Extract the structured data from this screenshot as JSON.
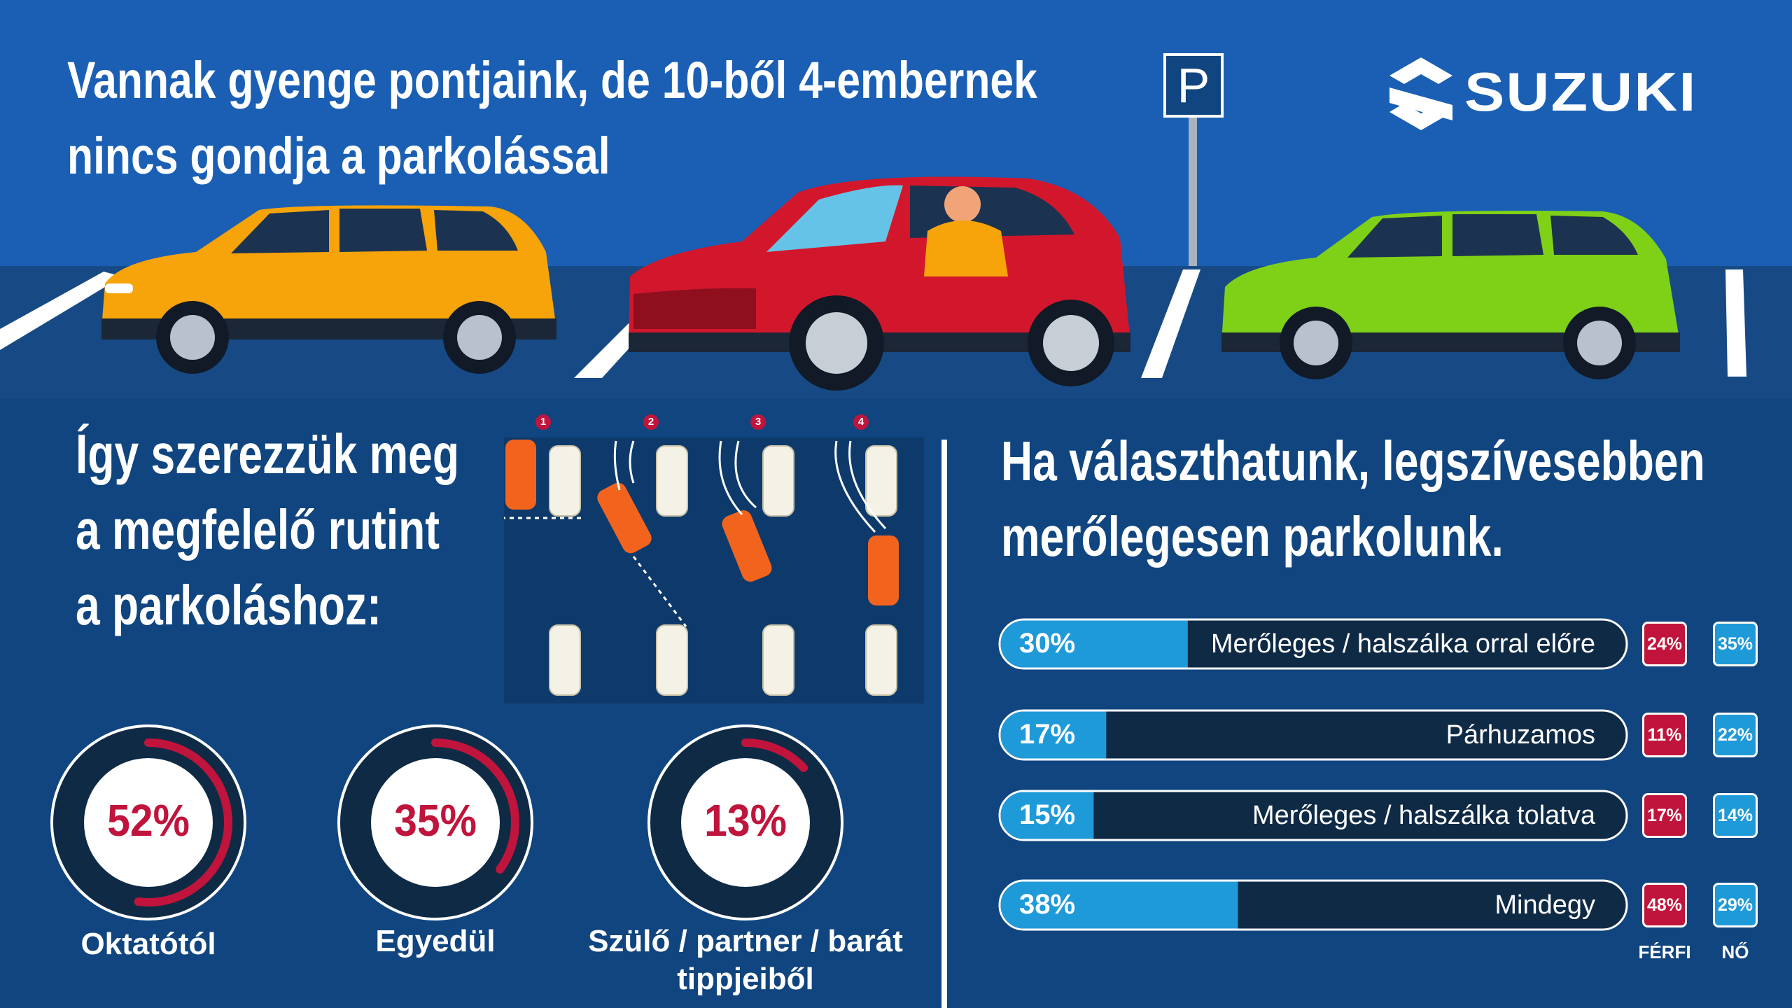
{
  "header": {
    "title_line1": "Vannak gyenge pontjaink, de 10-ből 4-embernek",
    "title_line2": "nincs gondja a parkolással",
    "logo_text": "SUZUKI",
    "parking_sign": "P"
  },
  "learning": {
    "title_line1": "Így szerezzük meg",
    "title_line2": "a megfelelő rutint",
    "title_line3": "a parkoláshoz:",
    "steps": [
      "1",
      "2",
      "3",
      "4"
    ]
  },
  "preference": {
    "title_line1": "Ha választhatunk, legszívesebben",
    "title_line2": "merőlegesen parkolunk."
  },
  "colors": {
    "background": "#10457f",
    "accent_red": "#c0143c",
    "bar_fill": "#1f9ad9",
    "bar_track": "#0f2a45",
    "car_orange": "#f7a30a",
    "car_red": "#d2172c",
    "car_green": "#7fd117"
  },
  "chart_data": [
    {
      "type": "pie",
      "categories": [
        "Oktatótól",
        "Egyedül",
        "Szülő / partner / barát tippjeiből"
      ],
      "values": [
        52,
        35,
        13
      ],
      "value_labels": [
        "52%",
        "35%",
        "13%"
      ]
    },
    {
      "type": "bar",
      "orientation": "horizontal",
      "categories": [
        "Merőleges / halszálka orral előre",
        "Párhuzamos",
        "Merőleges / halszálka tolatva",
        "Mindegy"
      ],
      "values": [
        30,
        17,
        15,
        38
      ],
      "value_labels": [
        "30%",
        "17%",
        "15%",
        "38%"
      ],
      "xlim": [
        0,
        100
      ],
      "series": [
        {
          "name": "FÉRFI",
          "values": [
            24,
            11,
            17,
            48
          ],
          "labels": [
            "24%",
            "11%",
            "17%",
            "48%"
          ],
          "color": "#c0143c"
        },
        {
          "name": "NŐ",
          "values": [
            35,
            22,
            14,
            29
          ],
          "labels": [
            "35%",
            "22%",
            "14%",
            "29%"
          ],
          "color": "#1f9ad9"
        }
      ]
    }
  ]
}
